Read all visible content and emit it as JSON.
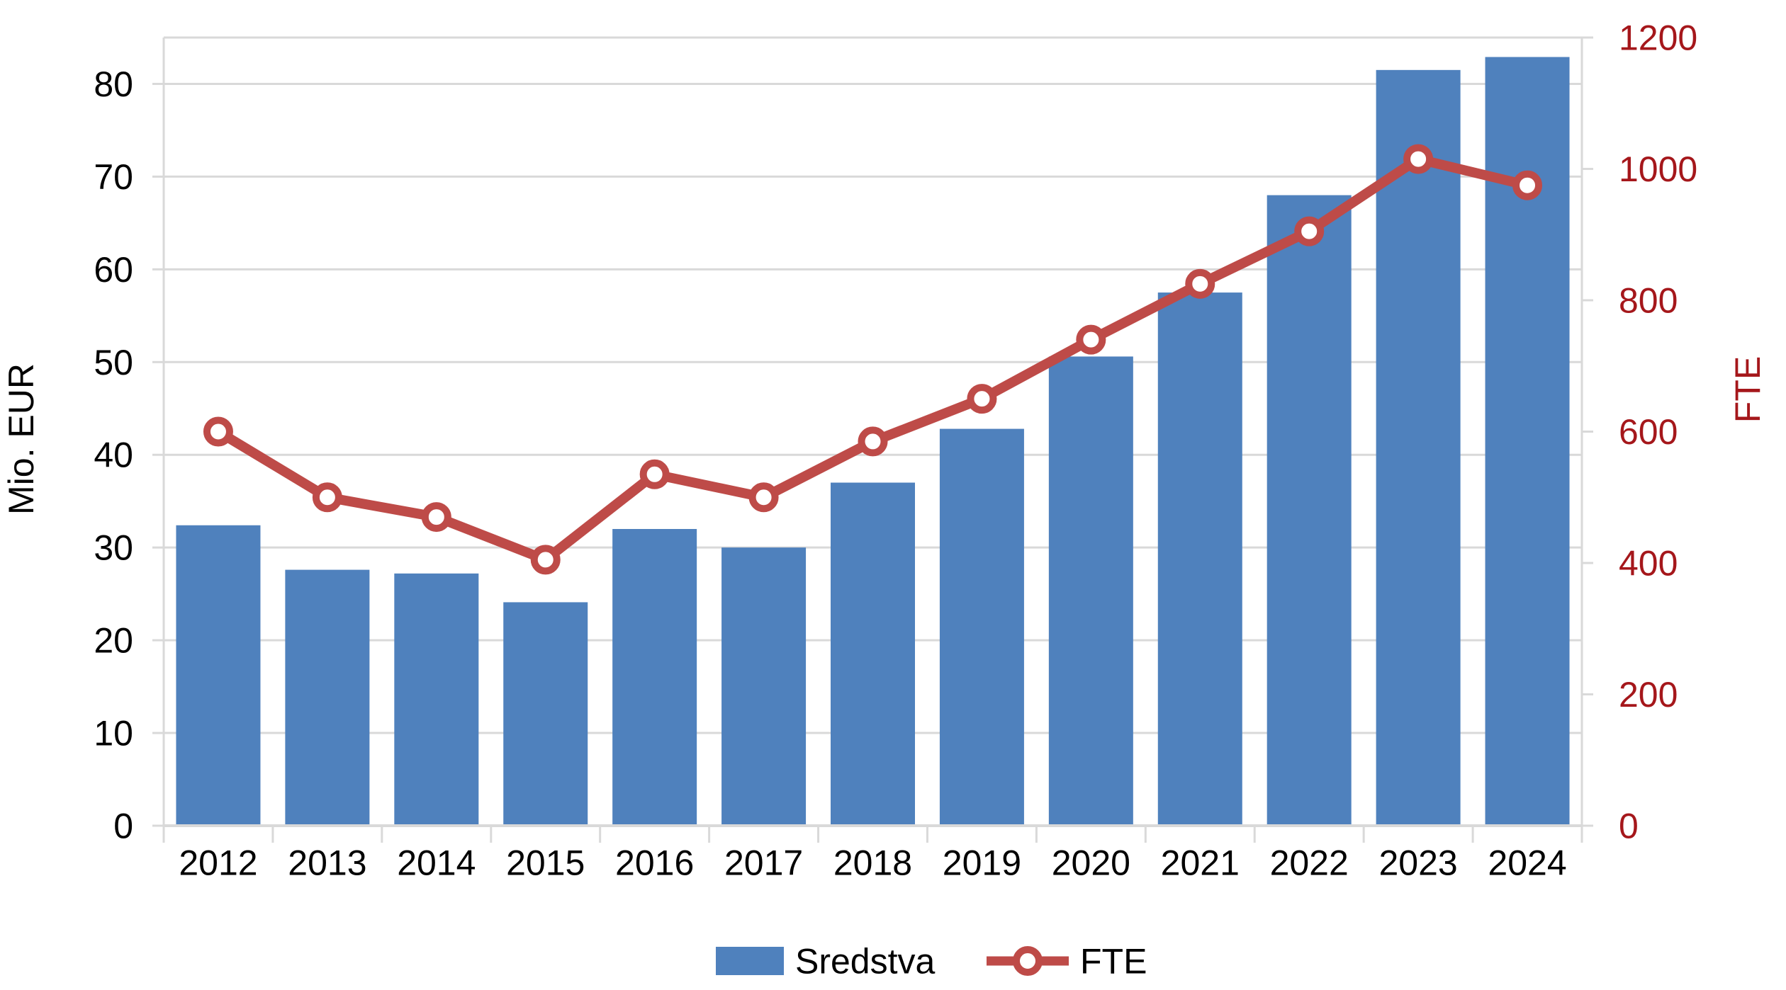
{
  "chart_data": {
    "type": "combo-bar-line",
    "categories": [
      "2012",
      "2013",
      "2014",
      "2015",
      "2016",
      "2017",
      "2018",
      "2019",
      "2020",
      "2021",
      "2022",
      "2023",
      "2024"
    ],
    "series": [
      {
        "name": "Sredstva",
        "type": "bar",
        "axis": "left",
        "color": "#4F81BD",
        "values": [
          32.4,
          27.6,
          27.2,
          24.1,
          32.0,
          30.0,
          37.0,
          42.8,
          50.6,
          57.5,
          68.0,
          81.5,
          82.9
        ]
      },
      {
        "name": "FTE",
        "type": "line",
        "axis": "right",
        "color": "#BE4B48",
        "marker": {
          "shape": "circle",
          "fill": "#FFFFFF",
          "stroke": "#BE4B48"
        },
        "values": [
          600,
          500,
          470,
          405,
          535,
          500,
          585,
          650,
          740,
          825,
          905,
          1015,
          975
        ]
      }
    ],
    "left_axis": {
      "title": "Mio. EUR",
      "min": 0,
      "tick_step": 10,
      "tick_end": 80,
      "scale_max": 85,
      "label_color": "#000000",
      "tick_labels": [
        "0",
        "10",
        "20",
        "30",
        "40",
        "50",
        "60",
        "70",
        "80"
      ]
    },
    "right_axis": {
      "title": "FTE",
      "min": 0,
      "tick_step": 200,
      "tick_end": 1200,
      "scale_max": 1200,
      "label_color": "#A5171B",
      "tick_labels": [
        "0",
        "200",
        "400",
        "600",
        "800",
        "1000",
        "1200"
      ]
    },
    "x_axis": {
      "label_color": "#000000"
    },
    "legend": {
      "position": "bottom-center",
      "entries": [
        {
          "label": "Sredstva",
          "swatch": "bar"
        },
        {
          "label": "FTE",
          "swatch": "line-marker"
        }
      ]
    },
    "grid": {
      "horizontal": true,
      "color": "#D9D9D9"
    }
  }
}
